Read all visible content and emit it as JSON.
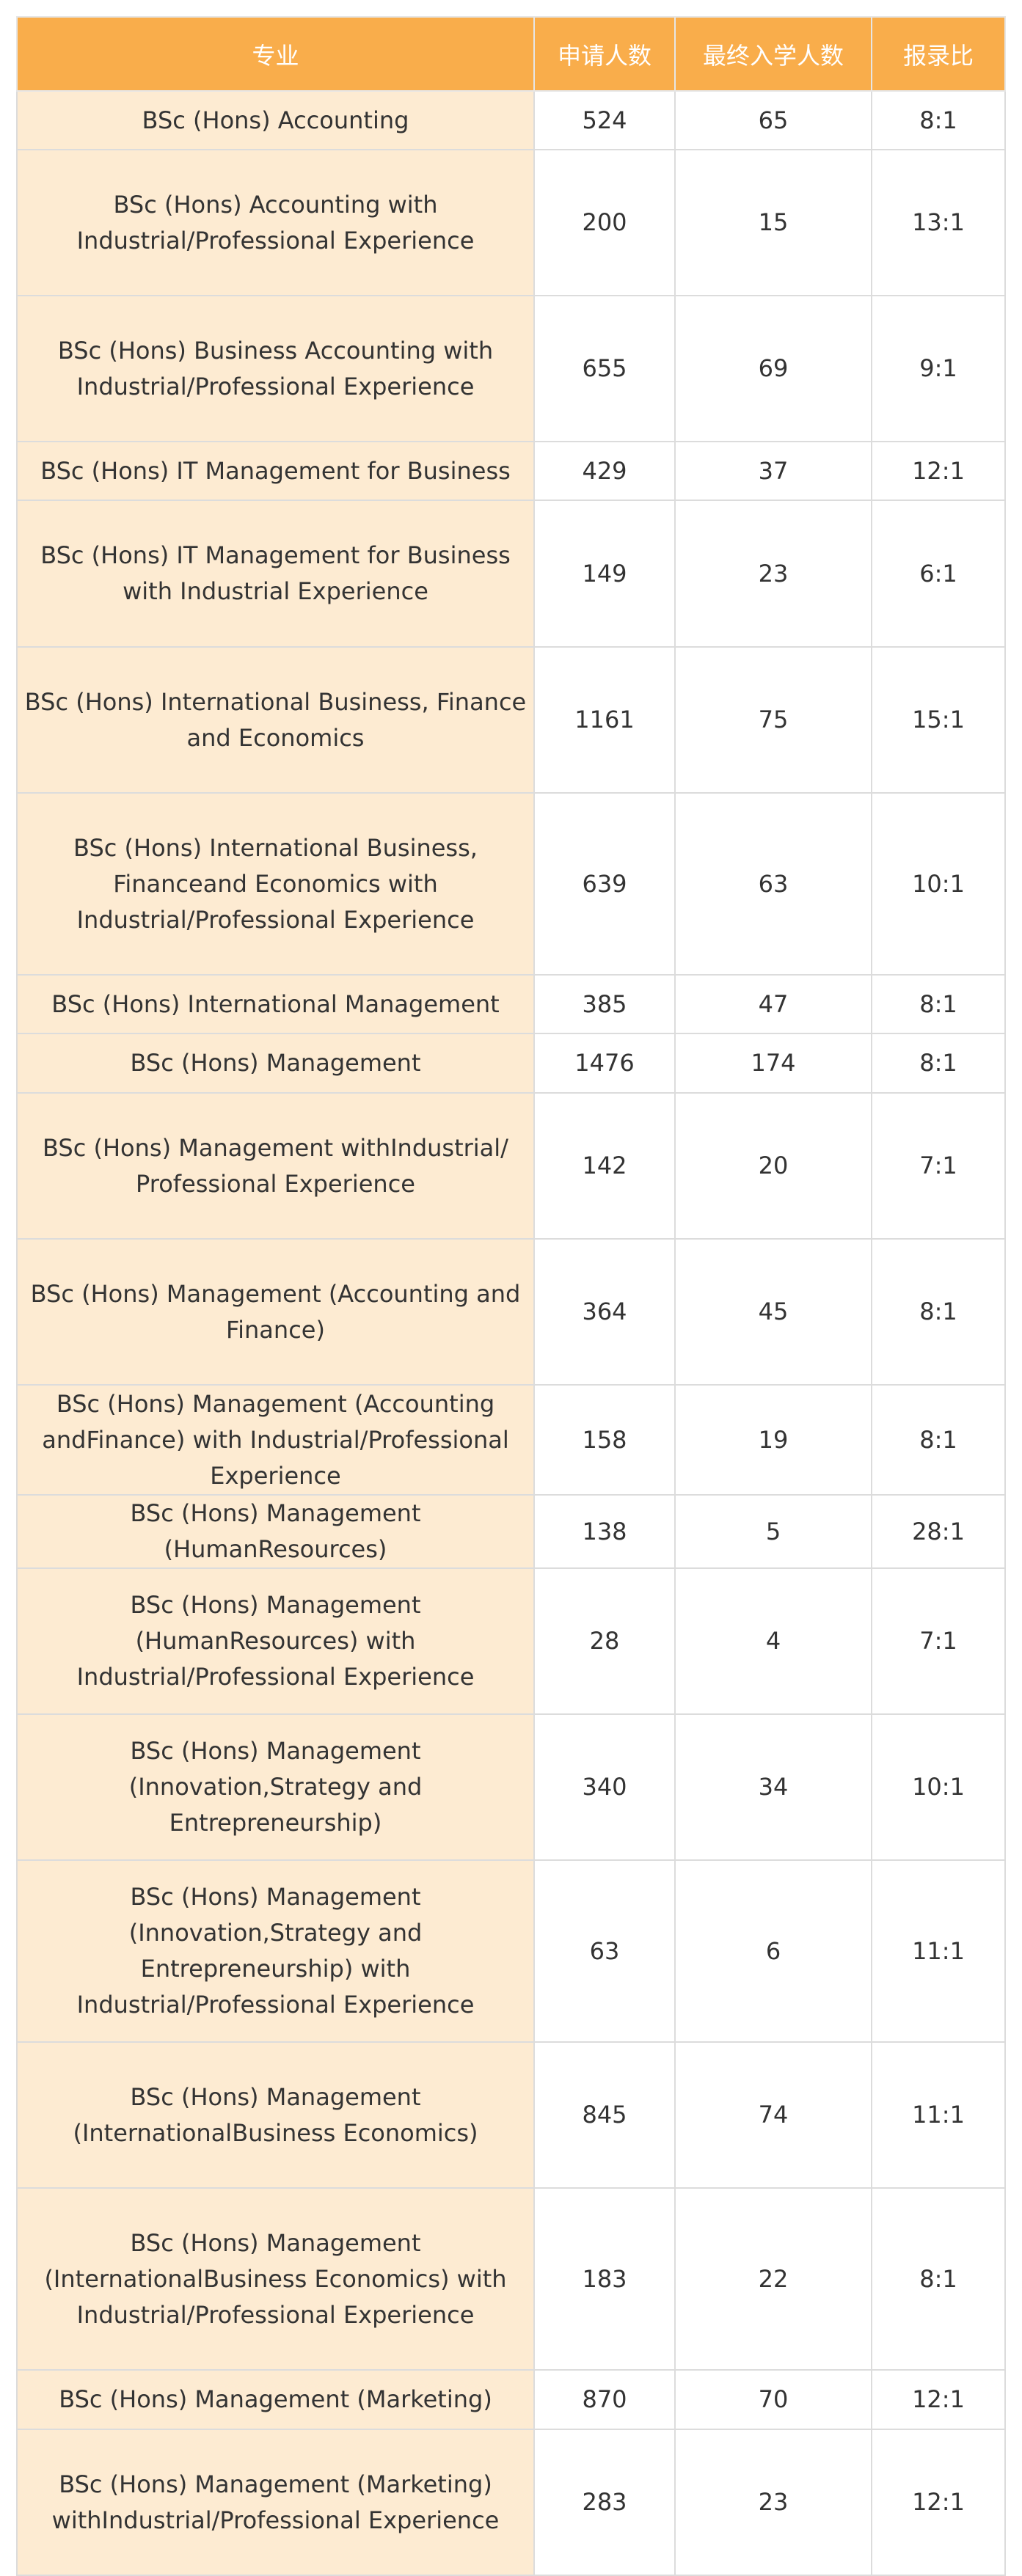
{
  "table": {
    "header": [
      "专业",
      "申请人数",
      "最终入学人数",
      "报录比"
    ],
    "rows": [
      [
        "BSc (Hons) Accounting",
        524,
        65,
        "8:1"
      ],
      [
        "BSc (Hons) Accounting with Industrial/Professional Experience",
        200,
        15,
        "13:1"
      ],
      [
        "BSc (Hons) Business Accounting with Industrial/Professional Experience",
        655,
        69,
        "9:1"
      ],
      [
        "BSc (Hons) IT Management for Business",
        429,
        37,
        "12:1"
      ],
      [
        "BSc (Hons) IT Management for Business with Industrial Experience",
        149,
        23,
        "6:1"
      ],
      [
        "BSc (Hons) International Business, Finance and Economics",
        1161,
        75,
        "15:1"
      ],
      [
        "BSc (Hons) International Business, Financeand Economics with Industrial/Professional Experience",
        639,
        63,
        "10:1"
      ],
      [
        "BSc (Hons) International Management",
        385,
        47,
        "8:1"
      ],
      [
        "BSc (Hons) Management",
        1476,
        174,
        "8:1"
      ],
      [
        "BSc (Hons) Management withIndustrial/ Professional Experience",
        142,
        20,
        "7:1"
      ],
      [
        "BSc (Hons) Management (Accounting and Finance)",
        364,
        45,
        "8:1"
      ],
      [
        "BSc (Hons) Management (Accounting andFinance) with Industrial/Professional Experience",
        158,
        19,
        "8:1"
      ],
      [
        "BSc (Hons) Management (HumanResources)",
        138,
        5,
        "28:1"
      ],
      [
        "BSc (Hons) Management (HumanResources) with Industrial/Professional Experience",
        28,
        4,
        "7:1"
      ],
      [
        "BSc (Hons) Management (Innovation,Strategy and Entrepreneurship)",
        340,
        34,
        "10:1"
      ],
      [
        "BSc (Hons) Management (Innovation,Strategy and Entrepreneurship) with Industrial/Professional Experience",
        63,
        6,
        "11:1"
      ],
      [
        "BSc (Hons) Management (InternationalBusiness Economics)",
        845,
        74,
        "11:1"
      ],
      [
        "BSc (Hons) Management (InternationalBusiness Economics) with Industrial/Professional Experience",
        183,
        22,
        "8:1"
      ],
      [
        "BSc (Hons) Management (Marketing)",
        870,
        70,
        "12:1"
      ],
      [
        "BSc (Hons) Management (Marketing) withIndustrial/Professional Experience",
        283,
        23,
        "12:1"
      ]
    ]
  }
}
